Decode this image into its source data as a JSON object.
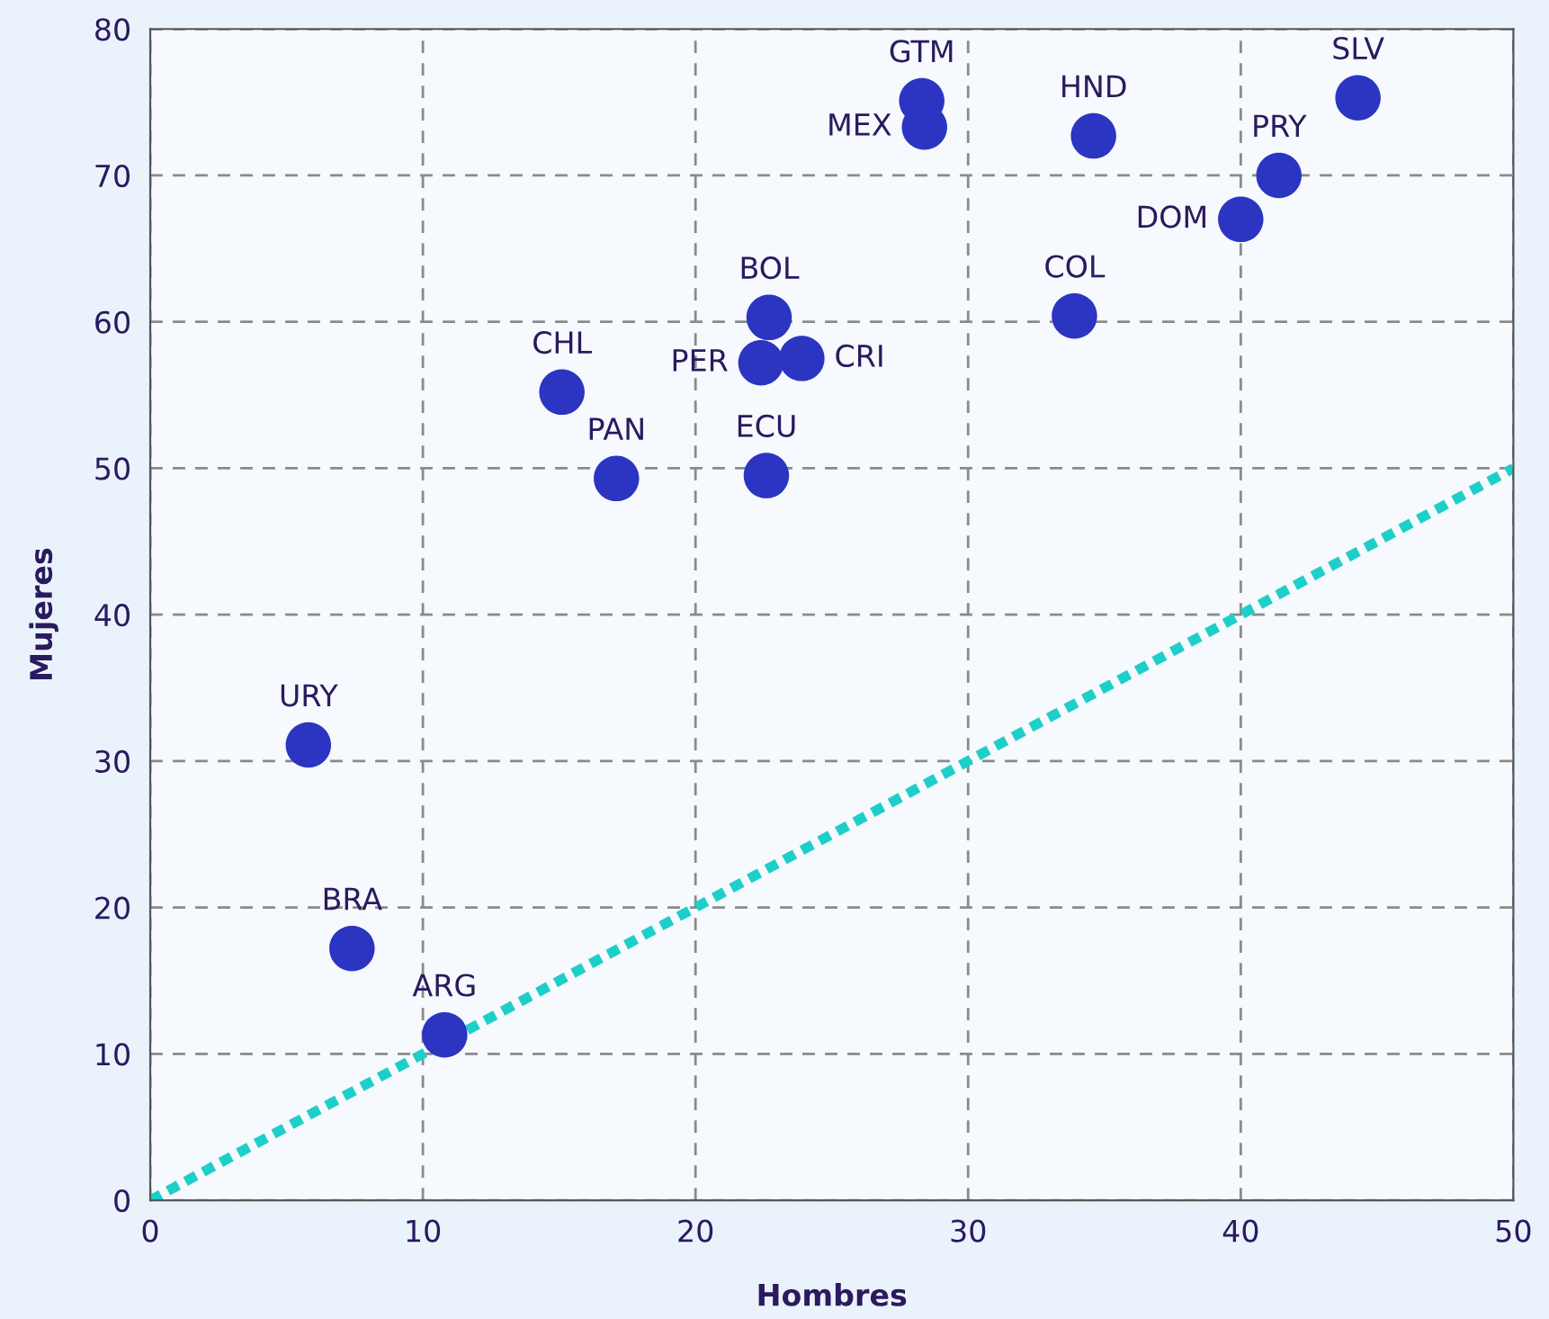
{
  "chart_data": {
    "type": "scatter",
    "xlabel": "Hombres",
    "ylabel": "Mujeres",
    "xlim": [
      0,
      50
    ],
    "ylim": [
      0,
      80
    ],
    "xticks": [
      0,
      10,
      20,
      30,
      40,
      50
    ],
    "yticks": [
      0,
      10,
      20,
      30,
      40,
      50,
      60,
      70,
      80
    ],
    "grid": true,
    "legend": false,
    "marker": "circle",
    "series": [
      {
        "color": "#2b35c2",
        "x": [
          28.3,
          28.4,
          34.6,
          44.3,
          41.4,
          40.0,
          33.9,
          22.7,
          22.4,
          23.9,
          15.1,
          17.1,
          22.6,
          5.8,
          7.4,
          10.8
        ],
        "values": [
          75.1,
          73.3,
          72.7,
          75.3,
          70.0,
          67.0,
          60.4,
          60.3,
          57.2,
          57.5,
          55.2,
          49.3,
          49.5,
          31.1,
          17.2,
          11.3
        ]
      },
      {
        "type": "line",
        "color": "#1ecfc9",
        "line_style": "dotted",
        "marker": "none",
        "x": [
          0,
          50
        ],
        "values": [
          0,
          50
        ]
      }
    ],
    "annotations": [
      {
        "text": "GTM",
        "x": 28.3,
        "y": 75.1
      },
      {
        "text": "MEX",
        "x": 28.4,
        "y": 73.3
      },
      {
        "text": "HND",
        "x": 34.6,
        "y": 72.7
      },
      {
        "text": "SLV",
        "x": 44.3,
        "y": 75.3
      },
      {
        "text": "PRY",
        "x": 41.4,
        "y": 70.0
      },
      {
        "text": "DOM",
        "x": 40.0,
        "y": 67.0
      },
      {
        "text": "COL",
        "x": 33.9,
        "y": 60.4
      },
      {
        "text": "BOL",
        "x": 22.7,
        "y": 60.3
      },
      {
        "text": "PER",
        "x": 22.4,
        "y": 57.2
      },
      {
        "text": "CRI",
        "x": 23.9,
        "y": 57.5
      },
      {
        "text": "CHL",
        "x": 15.1,
        "y": 55.2
      },
      {
        "text": "PAN",
        "x": 17.1,
        "y": 49.3
      },
      {
        "text": "ECU",
        "x": 22.6,
        "y": 49.5
      },
      {
        "text": "URY",
        "x": 5.8,
        "y": 31.1
      },
      {
        "text": "BRA",
        "x": 7.4,
        "y": 17.2
      },
      {
        "text": "ARG",
        "x": 10.8,
        "y": 11.3
      }
    ]
  }
}
